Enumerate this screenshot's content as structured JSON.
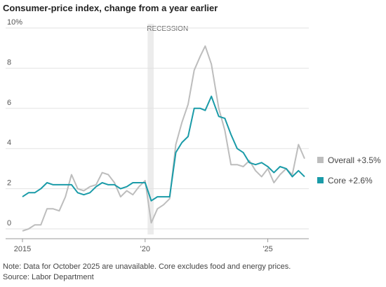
{
  "chart_data": {
    "type": "line",
    "title": "Consumer-price index, change from a year earlier",
    "annotation": "RECESSION",
    "recession": [
      2020.1,
      2020.35
    ],
    "note": "Note: Data for October 2025 are unavailable. Core excludes food and energy prices.",
    "source": "Source: Labor Department",
    "x": [
      2015,
      2015.25,
      2015.5,
      2015.75,
      2016,
      2016.25,
      2016.5,
      2016.75,
      2017,
      2017.25,
      2017.5,
      2017.75,
      2018,
      2018.25,
      2018.5,
      2018.75,
      2019,
      2019.25,
      2019.5,
      2019.75,
      2020,
      2020.25,
      2020.5,
      2020.75,
      2021,
      2021.25,
      2021.5,
      2021.75,
      2022,
      2022.25,
      2022.45,
      2022.7,
      2023,
      2023.25,
      2023.5,
      2023.75,
      2024,
      2024.25,
      2024.5,
      2024.75,
      2025,
      2025.25,
      2025.5,
      2025.75,
      2026,
      2026.25,
      2026.5
    ],
    "series": [
      {
        "name": "Overall +3.5%",
        "color": "#bdbdbd",
        "values": [
          -0.1,
          0.0,
          0.2,
          0.2,
          1.0,
          1.0,
          0.9,
          1.6,
          2.7,
          2.0,
          1.9,
          2.1,
          2.2,
          2.8,
          2.7,
          2.3,
          1.6,
          1.9,
          1.7,
          2.1,
          2.4,
          0.3,
          1.0,
          1.2,
          1.5,
          4.2,
          5.3,
          6.2,
          7.9,
          8.6,
          9.1,
          8.2,
          6.0,
          4.9,
          3.2,
          3.2,
          3.1,
          3.4,
          2.9,
          2.6,
          3.0,
          2.3,
          2.7,
          3.0,
          2.7,
          4.2,
          3.5
        ]
      },
      {
        "name": "Core +2.6%",
        "color": "#1a9ba8",
        "values": [
          1.6,
          1.8,
          1.8,
          2.0,
          2.3,
          2.2,
          2.2,
          2.2,
          2.2,
          1.8,
          1.7,
          1.8,
          2.1,
          2.3,
          2.2,
          2.2,
          2.0,
          2.1,
          2.3,
          2.3,
          2.3,
          1.4,
          1.6,
          1.6,
          1.6,
          3.8,
          4.3,
          4.6,
          6.0,
          6.0,
          5.9,
          6.6,
          5.6,
          5.5,
          4.7,
          4.0,
          3.8,
          3.3,
          3.2,
          3.3,
          3.1,
          2.8,
          3.1,
          3.0,
          2.6,
          2.9,
          2.6
        ]
      }
    ],
    "xlim": [
      2015,
      2026.5
    ],
    "xticks": [
      2015,
      {
        "value": 2020,
        "label": "'20"
      },
      {
        "value": 2025,
        "label": "'25"
      }
    ],
    "ylim": [
      0,
      10
    ],
    "yticks": [
      {
        "value": 10,
        "label": "10%"
      },
      8,
      6,
      4,
      2,
      0
    ],
    "grid": true,
    "legend": "right"
  }
}
